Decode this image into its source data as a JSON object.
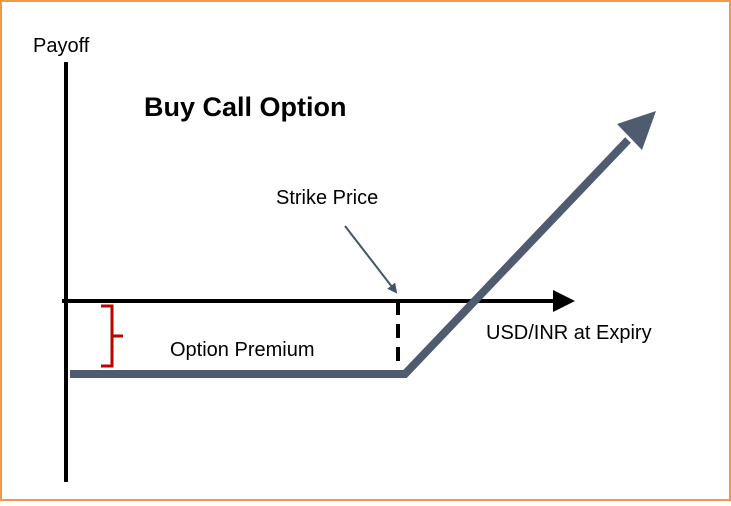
{
  "title": "Buy Call Option",
  "y_axis_label": "Payoff",
  "x_axis_label": "USD/INR at Expiry",
  "strike_label": "Strike Price",
  "premium_label": "Option Premium"
}
